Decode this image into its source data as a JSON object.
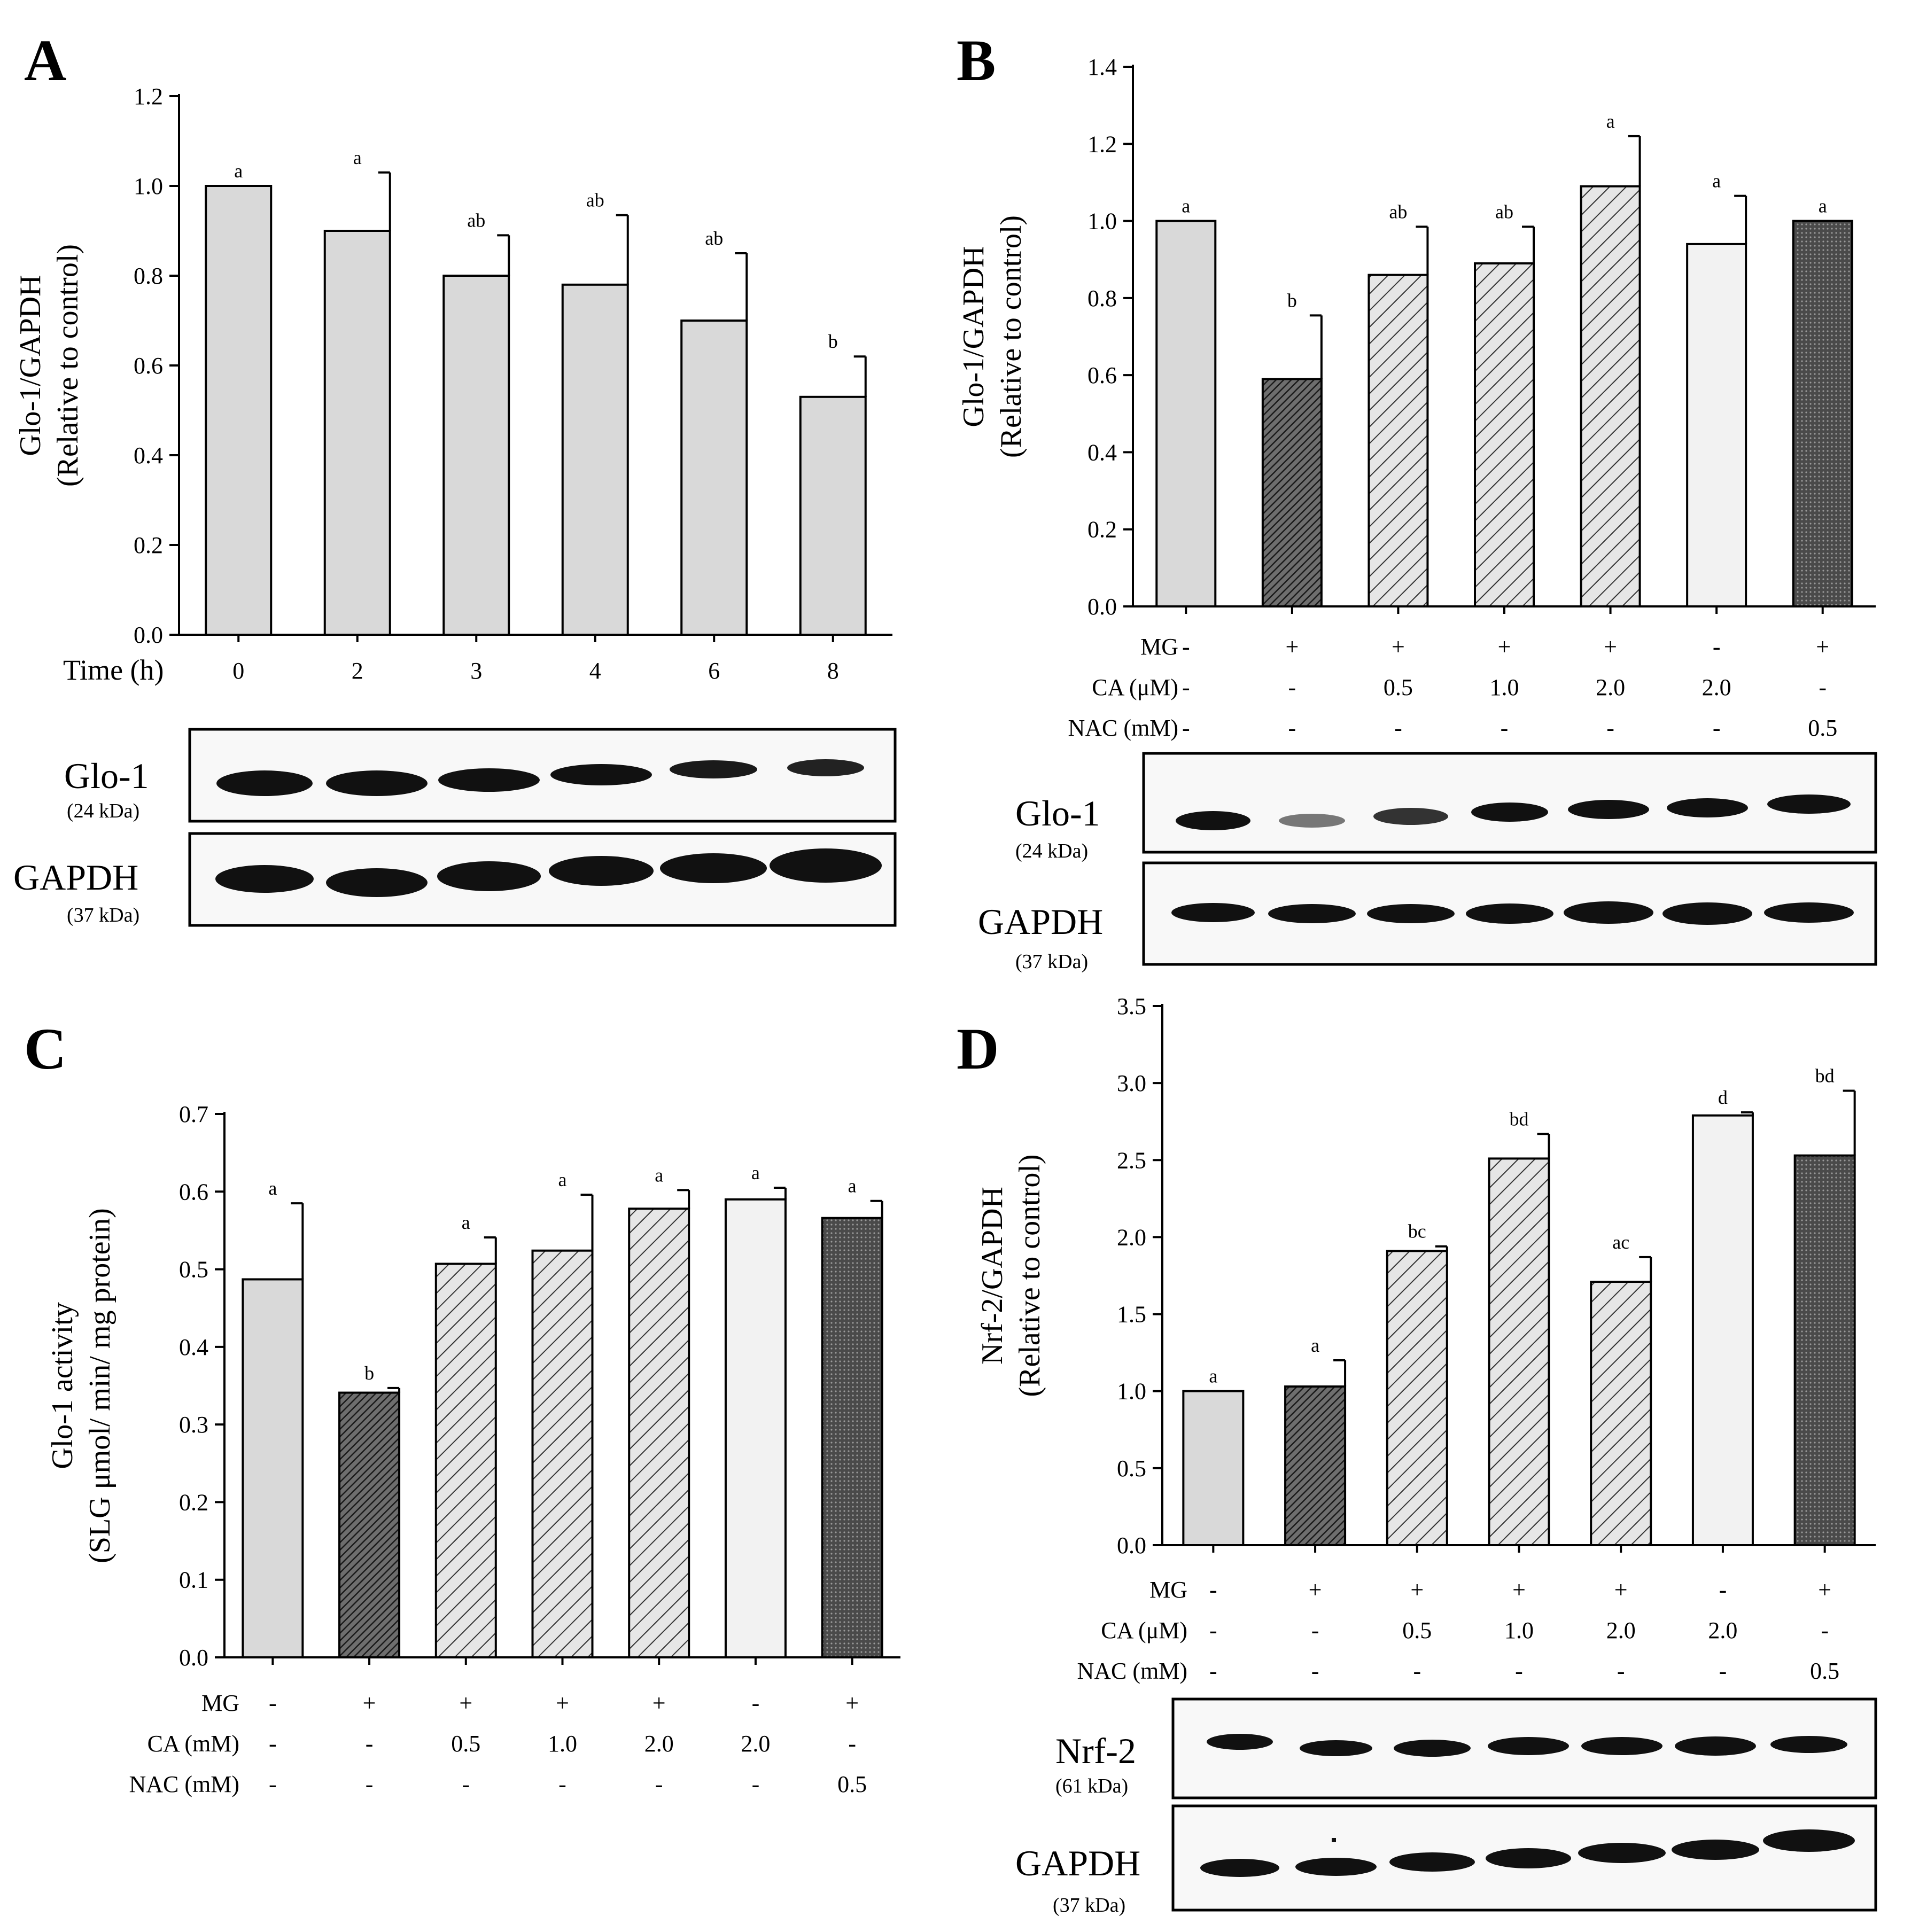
{
  "figure_labels": {
    "A": "A",
    "B": "B",
    "C": "C",
    "D": "D"
  },
  "blot_text": {
    "glo1": "Glo-1",
    "gapdh": "GAPDH",
    "nrf2": "Nrf-2",
    "kda24": "(24 kDa)",
    "kda37": "(37 kDa)",
    "kda61": "(61 kDa)"
  },
  "chart_data": [
    {
      "panel": "A",
      "type": "bar",
      "ylabel_line1": "Glo-1/GAPDH",
      "ylabel_line2": "(Relative to control)",
      "xlabel": "Time (h)",
      "categories": [
        "0",
        "2",
        "3",
        "4",
        "6",
        "8"
      ],
      "values": [
        1.0,
        0.9,
        0.8,
        0.78,
        0.7,
        0.53
      ],
      "errors": [
        0,
        0.13,
        0.09,
        0.155,
        0.15,
        0.09
      ],
      "sig": [
        "a",
        "a",
        "ab",
        "ab",
        "ab",
        "b"
      ],
      "ylim": [
        0,
        1.2
      ],
      "ticks": [
        "0.0",
        "0.2",
        "0.4",
        "0.6",
        "0.8",
        "1.0",
        "1.2"
      ],
      "fills": [
        "plain",
        "plain",
        "plain",
        "plain",
        "plain",
        "plain"
      ]
    },
    {
      "panel": "B",
      "type": "bar",
      "ylabel_line1": "Glo-1/GAPDH",
      "ylabel_line2": "(Relative to control)",
      "values": [
        1.0,
        0.59,
        0.86,
        0.89,
        1.09,
        0.94,
        1.0
      ],
      "errors": [
        0,
        0.165,
        0.125,
        0.095,
        0.13,
        0.125,
        0
      ],
      "sig": [
        "a",
        "b",
        "ab",
        "ab",
        "a",
        "a",
        "a"
      ],
      "ylim": [
        0,
        1.4
      ],
      "ticks": [
        "0.0",
        "0.2",
        "0.4",
        "0.6",
        "0.8",
        "1.0",
        "1.2",
        "1.4"
      ],
      "fills": [
        "plain",
        "dark",
        "hatch",
        "hatch",
        "hatch",
        "light",
        "dots"
      ],
      "treatments": [
        {
          "label": "MG",
          "values": [
            "-",
            "+",
            "+",
            "+",
            "+",
            "-",
            "+"
          ]
        },
        {
          "label": "CA (μM)",
          "values": [
            "-",
            "-",
            "0.5",
            "1.0",
            "2.0",
            "2.0",
            "-"
          ]
        },
        {
          "label": "NAC (mM)",
          "values": [
            "-",
            "-",
            "-",
            "-",
            "-",
            "-",
            "0.5"
          ]
        }
      ]
    },
    {
      "panel": "C",
      "type": "bar",
      "ylabel_line1": "Glo-1 activity",
      "ylabel_line2": "(SLG μmol/ min/ mg protein)",
      "values": [
        0.487,
        0.341,
        0.507,
        0.524,
        0.578,
        0.59,
        0.566
      ],
      "errors": [
        0.098,
        0.006,
        0.034,
        0.072,
        0.024,
        0.015,
        0.022
      ],
      "sig": [
        "a",
        "b",
        "a",
        "a",
        "a",
        "a",
        "a"
      ],
      "ylim": [
        0,
        0.7
      ],
      "ticks": [
        "0.0",
        "0.1",
        "0.2",
        "0.3",
        "0.4",
        "0.5",
        "0.6",
        "0.7"
      ],
      "fills": [
        "plain",
        "dark",
        "hatch",
        "hatch",
        "hatch",
        "light",
        "dots"
      ],
      "treatments": [
        {
          "label": "MG",
          "values": [
            "-",
            "+",
            "+",
            "+",
            "+",
            "-",
            "+"
          ]
        },
        {
          "label": "CA (mM)",
          "values": [
            "-",
            "-",
            "0.5",
            "1.0",
            "2.0",
            "2.0",
            "-"
          ]
        },
        {
          "label": "NAC (mM)",
          "values": [
            "-",
            "-",
            "-",
            "-",
            "-",
            "-",
            "0.5"
          ]
        }
      ]
    },
    {
      "panel": "D",
      "type": "bar",
      "ylabel_line1": "Nrf-2/GAPDH",
      "ylabel_line2": "(Relative to control)",
      "values": [
        1.0,
        1.03,
        1.91,
        2.51,
        1.71,
        2.79,
        2.53
      ],
      "errors": [
        0,
        0.17,
        0.03,
        0.16,
        0.16,
        0.02,
        0.42
      ],
      "sig": [
        "a",
        "a",
        "bc",
        "bd",
        "ac",
        "d",
        "bd"
      ],
      "ylim": [
        0,
        3.5
      ],
      "ticks": [
        "0.0",
        "0.5",
        "1.0",
        "1.5",
        "2.0",
        "2.5",
        "3.0",
        "3.5"
      ],
      "fills": [
        "plain",
        "dark",
        "hatch",
        "hatch",
        "hatch",
        "light",
        "dots"
      ],
      "treatments": [
        {
          "label": "MG",
          "values": [
            "-",
            "+",
            "+",
            "+",
            "+",
            "-",
            "+"
          ]
        },
        {
          "label": "CA (μM)",
          "values": [
            "-",
            "-",
            "0.5",
            "1.0",
            "2.0",
            "2.0",
            "-"
          ]
        },
        {
          "label": "NAC (mM)",
          "values": [
            "-",
            "-",
            "-",
            "-",
            "-",
            "-",
            "0.5"
          ]
        }
      ]
    }
  ]
}
